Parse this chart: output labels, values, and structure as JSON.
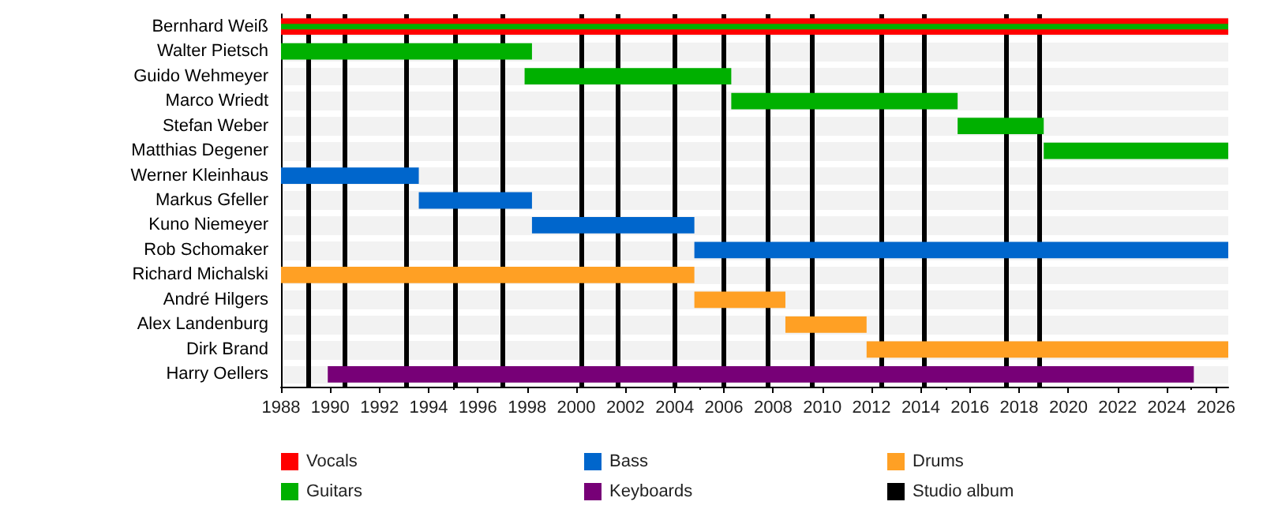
{
  "chart_data": {
    "type": "bar",
    "orientation": "horizontal",
    "categories": [
      "Bernhard Weiß",
      "Walter Pietsch",
      "Guido Wehmeyer",
      "Marco Wriedt",
      "Stefan Weber",
      "Matthias Degener",
      "Werner Kleinhaus",
      "Markus Gfeller",
      "Kuno Niemeyer",
      "Rob Schomaker",
      "Richard Michalski",
      "André Hilgers",
      "Alex Landenburg",
      "Dirk Brand",
      "Harry Oellers"
    ],
    "series": [
      {
        "name": "Vocals",
        "color": "#ff0000",
        "base": [
          1988,
          null,
          null,
          null,
          null,
          null,
          null,
          null,
          null,
          null,
          null,
          null,
          null,
          null,
          null
        ],
        "values": [
          38.5,
          null,
          null,
          null,
          null,
          null,
          null,
          null,
          null,
          null,
          null,
          null,
          null,
          null,
          null
        ]
      },
      {
        "name": "Guitars",
        "color": "#00b000",
        "base": [
          1988,
          1988,
          1997.9,
          2006.3,
          2015.5,
          2019.0,
          null,
          null,
          null,
          null,
          null,
          null,
          null,
          null,
          null
        ],
        "values": [
          38.5,
          10.2,
          8.4,
          9.2,
          3.5,
          7.5,
          null,
          null,
          null,
          null,
          null,
          null,
          null,
          null,
          null
        ]
      },
      {
        "name": "Bass",
        "color": "#0066cc",
        "base": [
          null,
          null,
          null,
          null,
          null,
          null,
          1988,
          1993.6,
          1998.2,
          2004.8,
          null,
          null,
          null,
          null,
          null
        ],
        "values": [
          null,
          null,
          null,
          null,
          null,
          null,
          5.6,
          4.6,
          6.6,
          21.7,
          null,
          null,
          null,
          null,
          null
        ]
      },
      {
        "name": "Keyboards",
        "color": "#770077",
        "base": [
          null,
          null,
          null,
          null,
          null,
          null,
          null,
          null,
          null,
          null,
          null,
          null,
          null,
          null,
          1989.9
        ],
        "values": [
          null,
          null,
          null,
          null,
          null,
          null,
          null,
          null,
          null,
          null,
          null,
          null,
          null,
          null,
          35.2
        ]
      },
      {
        "name": "Drums",
        "color": "#ffa024",
        "base": [
          null,
          null,
          null,
          null,
          null,
          null,
          null,
          null,
          null,
          null,
          1988,
          2004.8,
          2008.5,
          2011.8,
          null
        ],
        "values": [
          null,
          null,
          null,
          null,
          null,
          null,
          null,
          null,
          null,
          null,
          16.8,
          3.7,
          3.3,
          14.7,
          null
        ]
      }
    ],
    "ref_lines": [
      {
        "axis": "x",
        "value": 1989.1,
        "label": "Studio album",
        "color": "#000000"
      },
      {
        "axis": "x",
        "value": 1990.6,
        "color": "#000000"
      },
      {
        "axis": "x",
        "value": 1993.1,
        "color": "#000000"
      },
      {
        "axis": "x",
        "value": 1995.1,
        "color": "#000000"
      },
      {
        "axis": "x",
        "value": 1997.0,
        "color": "#000000"
      },
      {
        "axis": "x",
        "value": 2000.2,
        "color": "#000000"
      },
      {
        "axis": "x",
        "value": 2001.7,
        "color": "#000000"
      },
      {
        "axis": "x",
        "value": 2004.0,
        "color": "#000000"
      },
      {
        "axis": "x",
        "value": 2006.0,
        "color": "#000000"
      },
      {
        "axis": "x",
        "value": 2007.8,
        "color": "#000000"
      },
      {
        "axis": "x",
        "value": 2009.6,
        "color": "#000000"
      },
      {
        "axis": "x",
        "value": 2012.4,
        "color": "#000000"
      },
      {
        "axis": "x",
        "value": 2014.1,
        "color": "#000000"
      },
      {
        "axis": "x",
        "value": 2017.5,
        "color": "#000000"
      },
      {
        "axis": "x",
        "value": 2018.8,
        "color": "#000000"
      }
    ],
    "xlim": [
      1988,
      2026.5
    ],
    "xticks": [
      1988,
      1990,
      1992,
      1994,
      1996,
      1998,
      2000,
      2002,
      2004,
      2006,
      2008,
      2010,
      2012,
      2014,
      2016,
      2018,
      2020,
      2022,
      2024,
      2026
    ],
    "legend": "bottom"
  }
}
